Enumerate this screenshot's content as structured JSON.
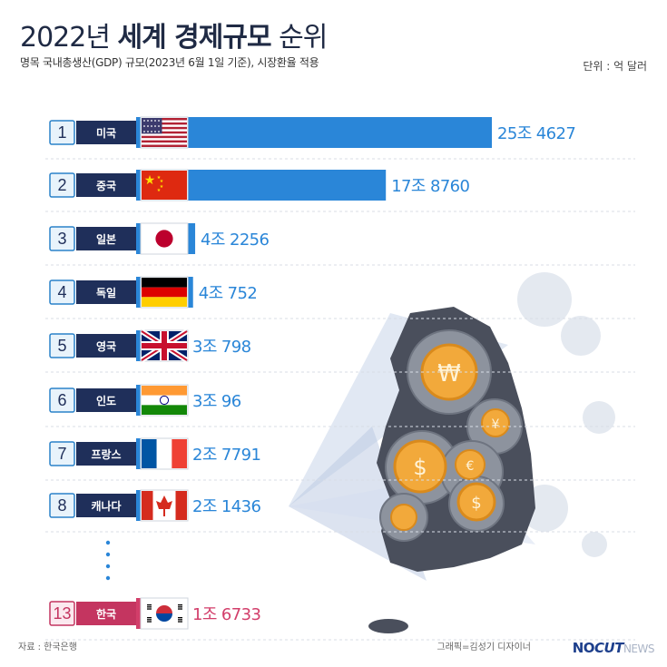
{
  "header": {
    "title_year": "2022년",
    "title_bold": "세계 경제규모",
    "title_end": "순위",
    "subtitle": "명목 국내총생산(GDP) 규모(2023년 6월 1일 기준), 시장환율 적용",
    "unit": "단위 : 억 달러"
  },
  "footer": {
    "source": "자료 : 한국은행",
    "credit": "그래픽=김성기 디자이너",
    "logo_no": "NO",
    "logo_cut": "CUT",
    "logo_news": "NEWS"
  },
  "colors": {
    "bar": "#2a86d8",
    "highlight": "#d23e6a",
    "name_box": "#1f2f5a"
  },
  "chart_data": {
    "type": "bar",
    "orientation": "horizontal",
    "categories": [
      "미국",
      "중국",
      "일본",
      "독일",
      "영국",
      "인도",
      "프랑스",
      "캐나다",
      "한국"
    ],
    "ranks": [
      "1",
      "2",
      "3",
      "4",
      "5",
      "6",
      "7",
      "8",
      "13"
    ],
    "values": [
      254627,
      178760,
      42256,
      40752,
      30798,
      30096,
      27791,
      21436,
      16733
    ],
    "value_labels": [
      "25조 4627",
      "17조 8760",
      "4조 2256",
      "4조 752",
      "3조 798",
      "3조 96",
      "2조 7791",
      "2조 1436",
      "1조 6733"
    ],
    "flags": [
      "us-flag-icon",
      "china-flag-icon",
      "japan-flag-icon",
      "germany-flag-icon",
      "uk-flag-icon",
      "india-flag-icon",
      "france-flag-icon",
      "canada-flag-icon",
      "korea-flag-icon"
    ],
    "highlight_index": 8,
    "gap_after_index": 7
  }
}
